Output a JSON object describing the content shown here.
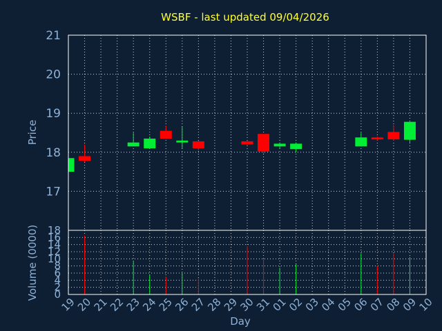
{
  "chart_data": {
    "type": "candlestick",
    "title": "WSBF - last updated 09/04/2026",
    "xlabel": "Day",
    "price_panel": {
      "ylabel": "Price",
      "ylim": [
        16.0,
        21.0
      ],
      "yticks": [
        17,
        18,
        19,
        20,
        21
      ],
      "grid": true
    },
    "volume_panel": {
      "ylabel": "Volume (0000)",
      "ylim": [
        0,
        18
      ],
      "yticks": [
        0,
        2,
        4,
        6,
        8,
        10,
        12,
        14,
        16,
        18
      ],
      "grid": true
    },
    "x_ticks": [
      "19",
      "20",
      "21",
      "22",
      "23",
      "24",
      "25",
      "26",
      "27",
      "28",
      "29",
      "30",
      "31",
      "01",
      "02",
      "03",
      "04",
      "05",
      "06",
      "07",
      "08",
      "09",
      "10"
    ],
    "up_color": "#00ee33",
    "down_color": "#ff0000",
    "candles": [
      {
        "day": "19",
        "open": 17.5,
        "high": 17.85,
        "low": 17.5,
        "close": 17.85,
        "volume": 0
      },
      {
        "day": "20",
        "open": 17.9,
        "high": 18.2,
        "low": 17.75,
        "close": 17.78,
        "volume": 16.5
      },
      {
        "day": "23",
        "open": 18.15,
        "high": 18.5,
        "low": 18.15,
        "close": 18.25,
        "volume": 9.5
      },
      {
        "day": "24",
        "open": 18.1,
        "high": 18.4,
        "low": 18.1,
        "close": 18.35,
        "volume": 5.5
      },
      {
        "day": "25",
        "open": 18.55,
        "high": 18.68,
        "low": 18.35,
        "close": 18.35,
        "volume": 5.0
      },
      {
        "day": "26",
        "open": 18.25,
        "high": 18.65,
        "low": 18.1,
        "close": 18.3,
        "volume": 6.0
      },
      {
        "day": "27",
        "open": 18.28,
        "high": 18.3,
        "low": 18.05,
        "close": 18.1,
        "volume": 4.5
      },
      {
        "day": "30",
        "open": 18.28,
        "high": 18.3,
        "low": 18.18,
        "close": 18.2,
        "volume": 13.5
      },
      {
        "day": "31",
        "open": 18.47,
        "high": 18.47,
        "low": 17.97,
        "close": 18.02,
        "volume": 10.0
      },
      {
        "day": "01",
        "open": 18.15,
        "high": 18.25,
        "low": 18.1,
        "close": 18.22,
        "volume": 7.5
      },
      {
        "day": "02",
        "open": 18.08,
        "high": 18.25,
        "low": 18.0,
        "close": 18.22,
        "volume": 8.5
      },
      {
        "day": "06",
        "open": 18.15,
        "high": 18.5,
        "low": 18.15,
        "close": 18.38,
        "volume": 11.5
      },
      {
        "day": "07",
        "open": 18.38,
        "high": 18.4,
        "low": 18.3,
        "close": 18.33,
        "volume": 8.0
      },
      {
        "day": "08",
        "open": 18.52,
        "high": 18.7,
        "low": 18.3,
        "close": 18.33,
        "volume": 11.5
      },
      {
        "day": "09",
        "open": 18.32,
        "high": 18.78,
        "low": 18.22,
        "close": 18.78,
        "volume": 10.5
      }
    ]
  }
}
